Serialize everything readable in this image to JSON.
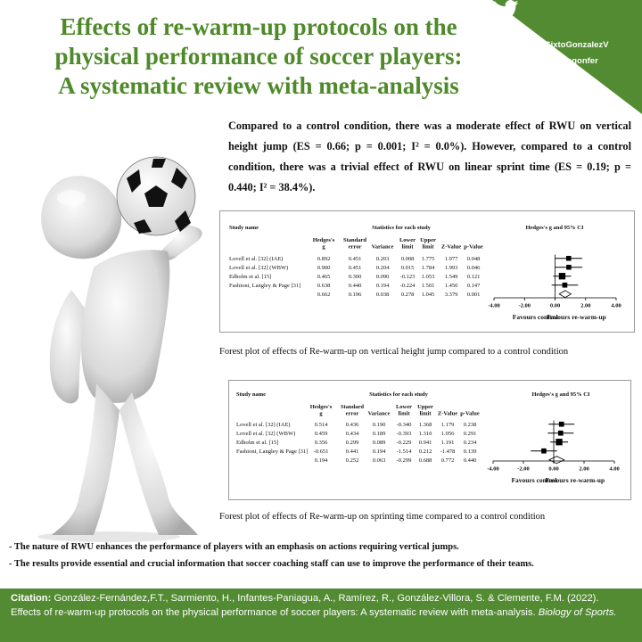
{
  "title": {
    "lines": [
      "Effects of re-warm-up protocols on the",
      "physical performance  of soccer players:",
      "A systematic review with meta-analysis"
    ]
  },
  "social": {
    "handle1": "@SixtoGonzalezV",
    "handle2": "@frangonfer"
  },
  "summary": "Compared to a control condition, there was a moderate effect of RWU on vertical height jump (ES = 0.66; p = 0.001; I² = 0.0%). However, compared to a control condition, there was a trivial effect of RWU on linear sprint time (ES = 0.19; p = 0.440; I² = 38.4%).",
  "colors": {
    "brand_green": "#528b32",
    "title_green": "#4f8a2a"
  },
  "chart_data": [
    {
      "type": "table",
      "caption": "Forest plot of effects of Re-warm-up on vertical height jump compared to a control condition",
      "headers": {
        "study": "Study name",
        "stats_group": "Statistics for each study",
        "ci_group": "Hedges's g and 95% CI",
        "columns": [
          [
            "Hedges's",
            "g"
          ],
          [
            "Standard",
            "error"
          ],
          [
            "Variance"
          ],
          [
            "Lower",
            "limit"
          ],
          [
            "Upper",
            "limit"
          ],
          [
            "Z-Value"
          ],
          [
            "p-Value"
          ]
        ]
      },
      "rows": [
        {
          "study": "Lovell et al. [32] (IAE)",
          "g": 0.892,
          "se": 0.451,
          "var": 0.203,
          "lower": 0.008,
          "upper": 1.775,
          "z": 1.977,
          "p": 0.048,
          "g_txt": "0.892",
          "se_txt": "0.451",
          "var_txt": "0.203",
          "lower_txt": "0.008",
          "upper_txt": "1.775",
          "z_txt": "1.977",
          "p_txt": "0.048"
        },
        {
          "study": "Lovell et al. [32] (WBW)",
          "g": 0.9,
          "se": 0.451,
          "var": 0.204,
          "lower": 0.015,
          "upper": 1.784,
          "z": 1.993,
          "p": 0.046,
          "g_txt": "0.900",
          "se_txt": "0.451",
          "var_txt": "0.204",
          "lower_txt": "0.015",
          "upper_txt": "1.784",
          "z_txt": "1.993",
          "p_txt": "0.046"
        },
        {
          "study": "Edholm et al. [15]",
          "g": 0.465,
          "se": 0.3,
          "var": 0.09,
          "lower": -0.123,
          "upper": 1.053,
          "z": 1.549,
          "p": 0.121,
          "g_txt": "0.465",
          "se_txt": "0.300",
          "var_txt": "0.090",
          "lower_txt": "-0.123",
          "upper_txt": "1.053",
          "z_txt": "1.549",
          "p_txt": "0.121"
        },
        {
          "study": "Fashioni, Langley & Page [31]",
          "g": 0.638,
          "se": 0.44,
          "var": 0.194,
          "lower": -0.224,
          "upper": 1.501,
          "z": 1.45,
          "p": 0.147,
          "g_txt": "0.638",
          "se_txt": "0.440",
          "var_txt": "0.194",
          "lower_txt": "-0.224",
          "upper_txt": "1.501",
          "z_txt": "1.450",
          "p_txt": "0.147"
        }
      ],
      "summary": {
        "g": 0.662,
        "se": 0.196,
        "var": 0.038,
        "lower": 0.278,
        "upper": 1.045,
        "z": 3.379,
        "p": 0.001,
        "g_txt": "0.662",
        "se_txt": "0.196",
        "var_txt": "0.038",
        "lower_txt": "0.278",
        "upper_txt": "1.045",
        "z_txt": "3.379",
        "p_txt": "0.001"
      },
      "axis": {
        "range": [
          -4,
          4
        ],
        "ticks": [
          -4,
          -2,
          0,
          2,
          4
        ],
        "tick_labels": [
          "-4.00",
          "-2.00",
          "0.00",
          "2.00",
          "4.00"
        ]
      },
      "favours_left": "Favours control",
      "favours_right": "Favours re-warm-up"
    },
    {
      "type": "table",
      "caption": "Forest plot of effects of Re-warm-up on sprinting time compared to a control condition",
      "headers": {
        "study": "Study name",
        "stats_group": "Statistics for each study",
        "ci_group": "Hedges's g and 95% CI",
        "columns": [
          [
            "Hedges's",
            "g"
          ],
          [
            "Standard",
            "error"
          ],
          [
            "Variance"
          ],
          [
            "Lower",
            "limit"
          ],
          [
            "Upper",
            "limit"
          ],
          [
            "Z-Value"
          ],
          [
            "p-Value"
          ]
        ]
      },
      "rows": [
        {
          "study": "Lovell et al. [32] (IAE)",
          "g": 0.514,
          "se": 0.436,
          "var": 0.19,
          "lower": -0.34,
          "upper": 1.368,
          "z": 1.179,
          "p": 0.238,
          "g_txt": "0.514",
          "se_txt": "0.436",
          "var_txt": "0.190",
          "lower_txt": "-0.340",
          "upper_txt": "1.368",
          "z_txt": "1.179",
          "p_txt": "0.238"
        },
        {
          "study": "Lovell et al. [32] (WBW)",
          "g": 0.459,
          "se": 0.434,
          "var": 0.189,
          "lower": -0.393,
          "upper": 1.31,
          "z": 1.056,
          "p": 0.291,
          "g_txt": "0.459",
          "se_txt": "0.434",
          "var_txt": "0.189",
          "lower_txt": "-0.393",
          "upper_txt": "1.310",
          "z_txt": "1.056",
          "p_txt": "0.291"
        },
        {
          "study": "Edholm et al. [15]",
          "g": 0.356,
          "se": 0.299,
          "var": 0.089,
          "lower": -0.229,
          "upper": 0.941,
          "z": 1.191,
          "p": 0.234,
          "g_txt": "0.356",
          "se_txt": "0.299",
          "var_txt": "0.089",
          "lower_txt": "-0.229",
          "upper_txt": "0.941",
          "z_txt": "1.191",
          "p_txt": "0.234"
        },
        {
          "study": "Fashioni, Langley & Page [31]",
          "g": -0.651,
          "se": 0.441,
          "var": 0.194,
          "lower": -1.514,
          "upper": 0.212,
          "z": -1.478,
          "p": 0.139,
          "g_txt": "-0.651",
          "se_txt": "0.441",
          "var_txt": "0.194",
          "lower_txt": "-1.514",
          "upper_txt": "0.212",
          "z_txt": "-1.478",
          "p_txt": "0.139"
        }
      ],
      "summary": {
        "g": 0.194,
        "se": 0.252,
        "var": 0.063,
        "lower": -0.299,
        "upper": 0.688,
        "z": 0.772,
        "p": 0.44,
        "g_txt": "0.194",
        "se_txt": "0.252",
        "var_txt": "0.063",
        "lower_txt": "-0.299",
        "upper_txt": "0.688",
        "z_txt": "0.772",
        "p_txt": "0.440"
      },
      "axis": {
        "range": [
          -4,
          4
        ],
        "ticks": [
          -4,
          -2,
          0,
          2,
          4
        ],
        "tick_labels": [
          "-4.00",
          "-2.00",
          "0.00",
          "2.00",
          "4.00"
        ]
      },
      "favours_left": "Favours control",
      "favours_right": "Favours re-warm-up"
    }
  ],
  "bullets": [
    "- The nature of RWU  enhances the performance of players with an emphasis on actions requiring vertical jumps.",
    "- The results provide essential and crucial information that soccer coaching staff can use to improve the performance of their teams."
  ],
  "citation": {
    "label": "Citation:",
    "text": " González-Fernández,F.T.,  Sarmiento, H., Infantes-Paniagua, A., Ramírez, R., González-Villora, S. & Clemente, F.M. (2022). Effects of re-warm-up protocols on the physical performance of soccer players: A systematic review with meta-analysis.",
    "journal": "Biology of Sports."
  }
}
